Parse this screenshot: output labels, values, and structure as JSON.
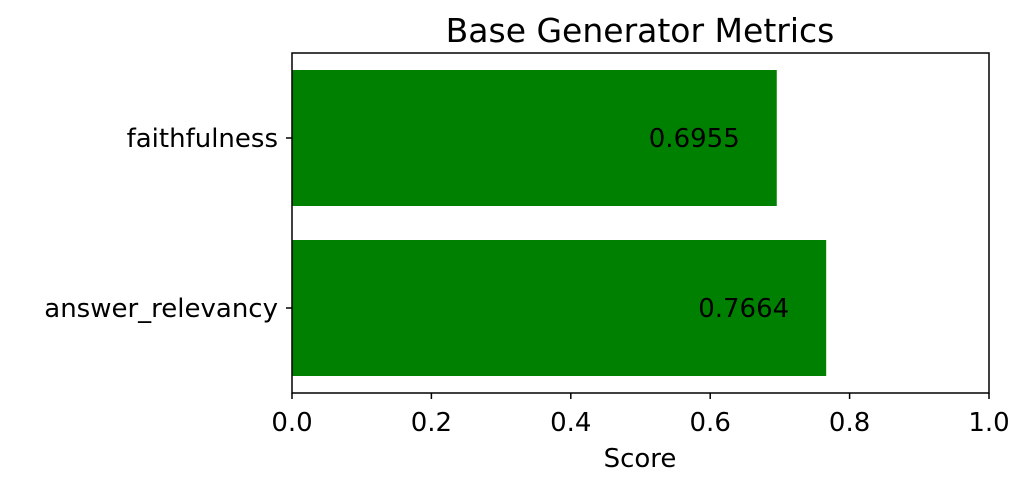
{
  "chart_data": {
    "type": "bar",
    "orientation": "horizontal",
    "title": "Base Generator Metrics",
    "xlabel": "Score",
    "ylabel": "",
    "categories": [
      "answer_relevancy",
      "faithfulness"
    ],
    "values": [
      0.7664,
      0.6955
    ],
    "value_labels": [
      "0.7664",
      "0.6955"
    ],
    "xlim": [
      0.0,
      1.0
    ],
    "xticks": [
      0.0,
      0.2,
      0.4,
      0.6,
      0.8,
      1.0
    ],
    "xtick_labels": [
      "0.0",
      "0.2",
      "0.4",
      "0.6",
      "0.8",
      "1.0"
    ],
    "bar_color": "#008000",
    "grid": false,
    "legend": "none"
  }
}
